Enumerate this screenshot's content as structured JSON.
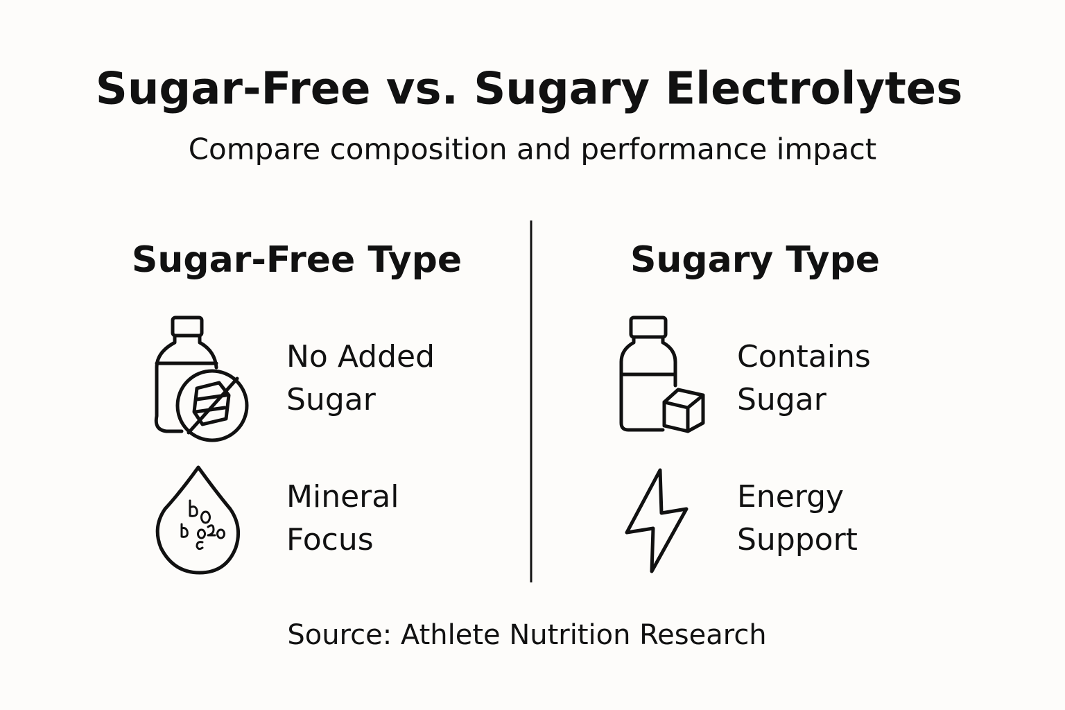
{
  "header": {
    "title": "Sugar-Free vs. Sugary Electrolytes",
    "subtitle": "Compare composition and performance impact"
  },
  "columns": [
    {
      "title": "Sugar-Free Type",
      "items": [
        {
          "lines": [
            "No Added",
            "Sugar"
          ]
        },
        {
          "lines": [
            "Mineral",
            "Focus"
          ]
        }
      ]
    },
    {
      "title": "Sugary Type",
      "items": [
        {
          "lines": [
            "Contains",
            "Sugar"
          ]
        },
        {
          "lines": [
            "Energy",
            "Support"
          ]
        }
      ]
    }
  ],
  "source": "Source: Athlete Nutrition Research"
}
